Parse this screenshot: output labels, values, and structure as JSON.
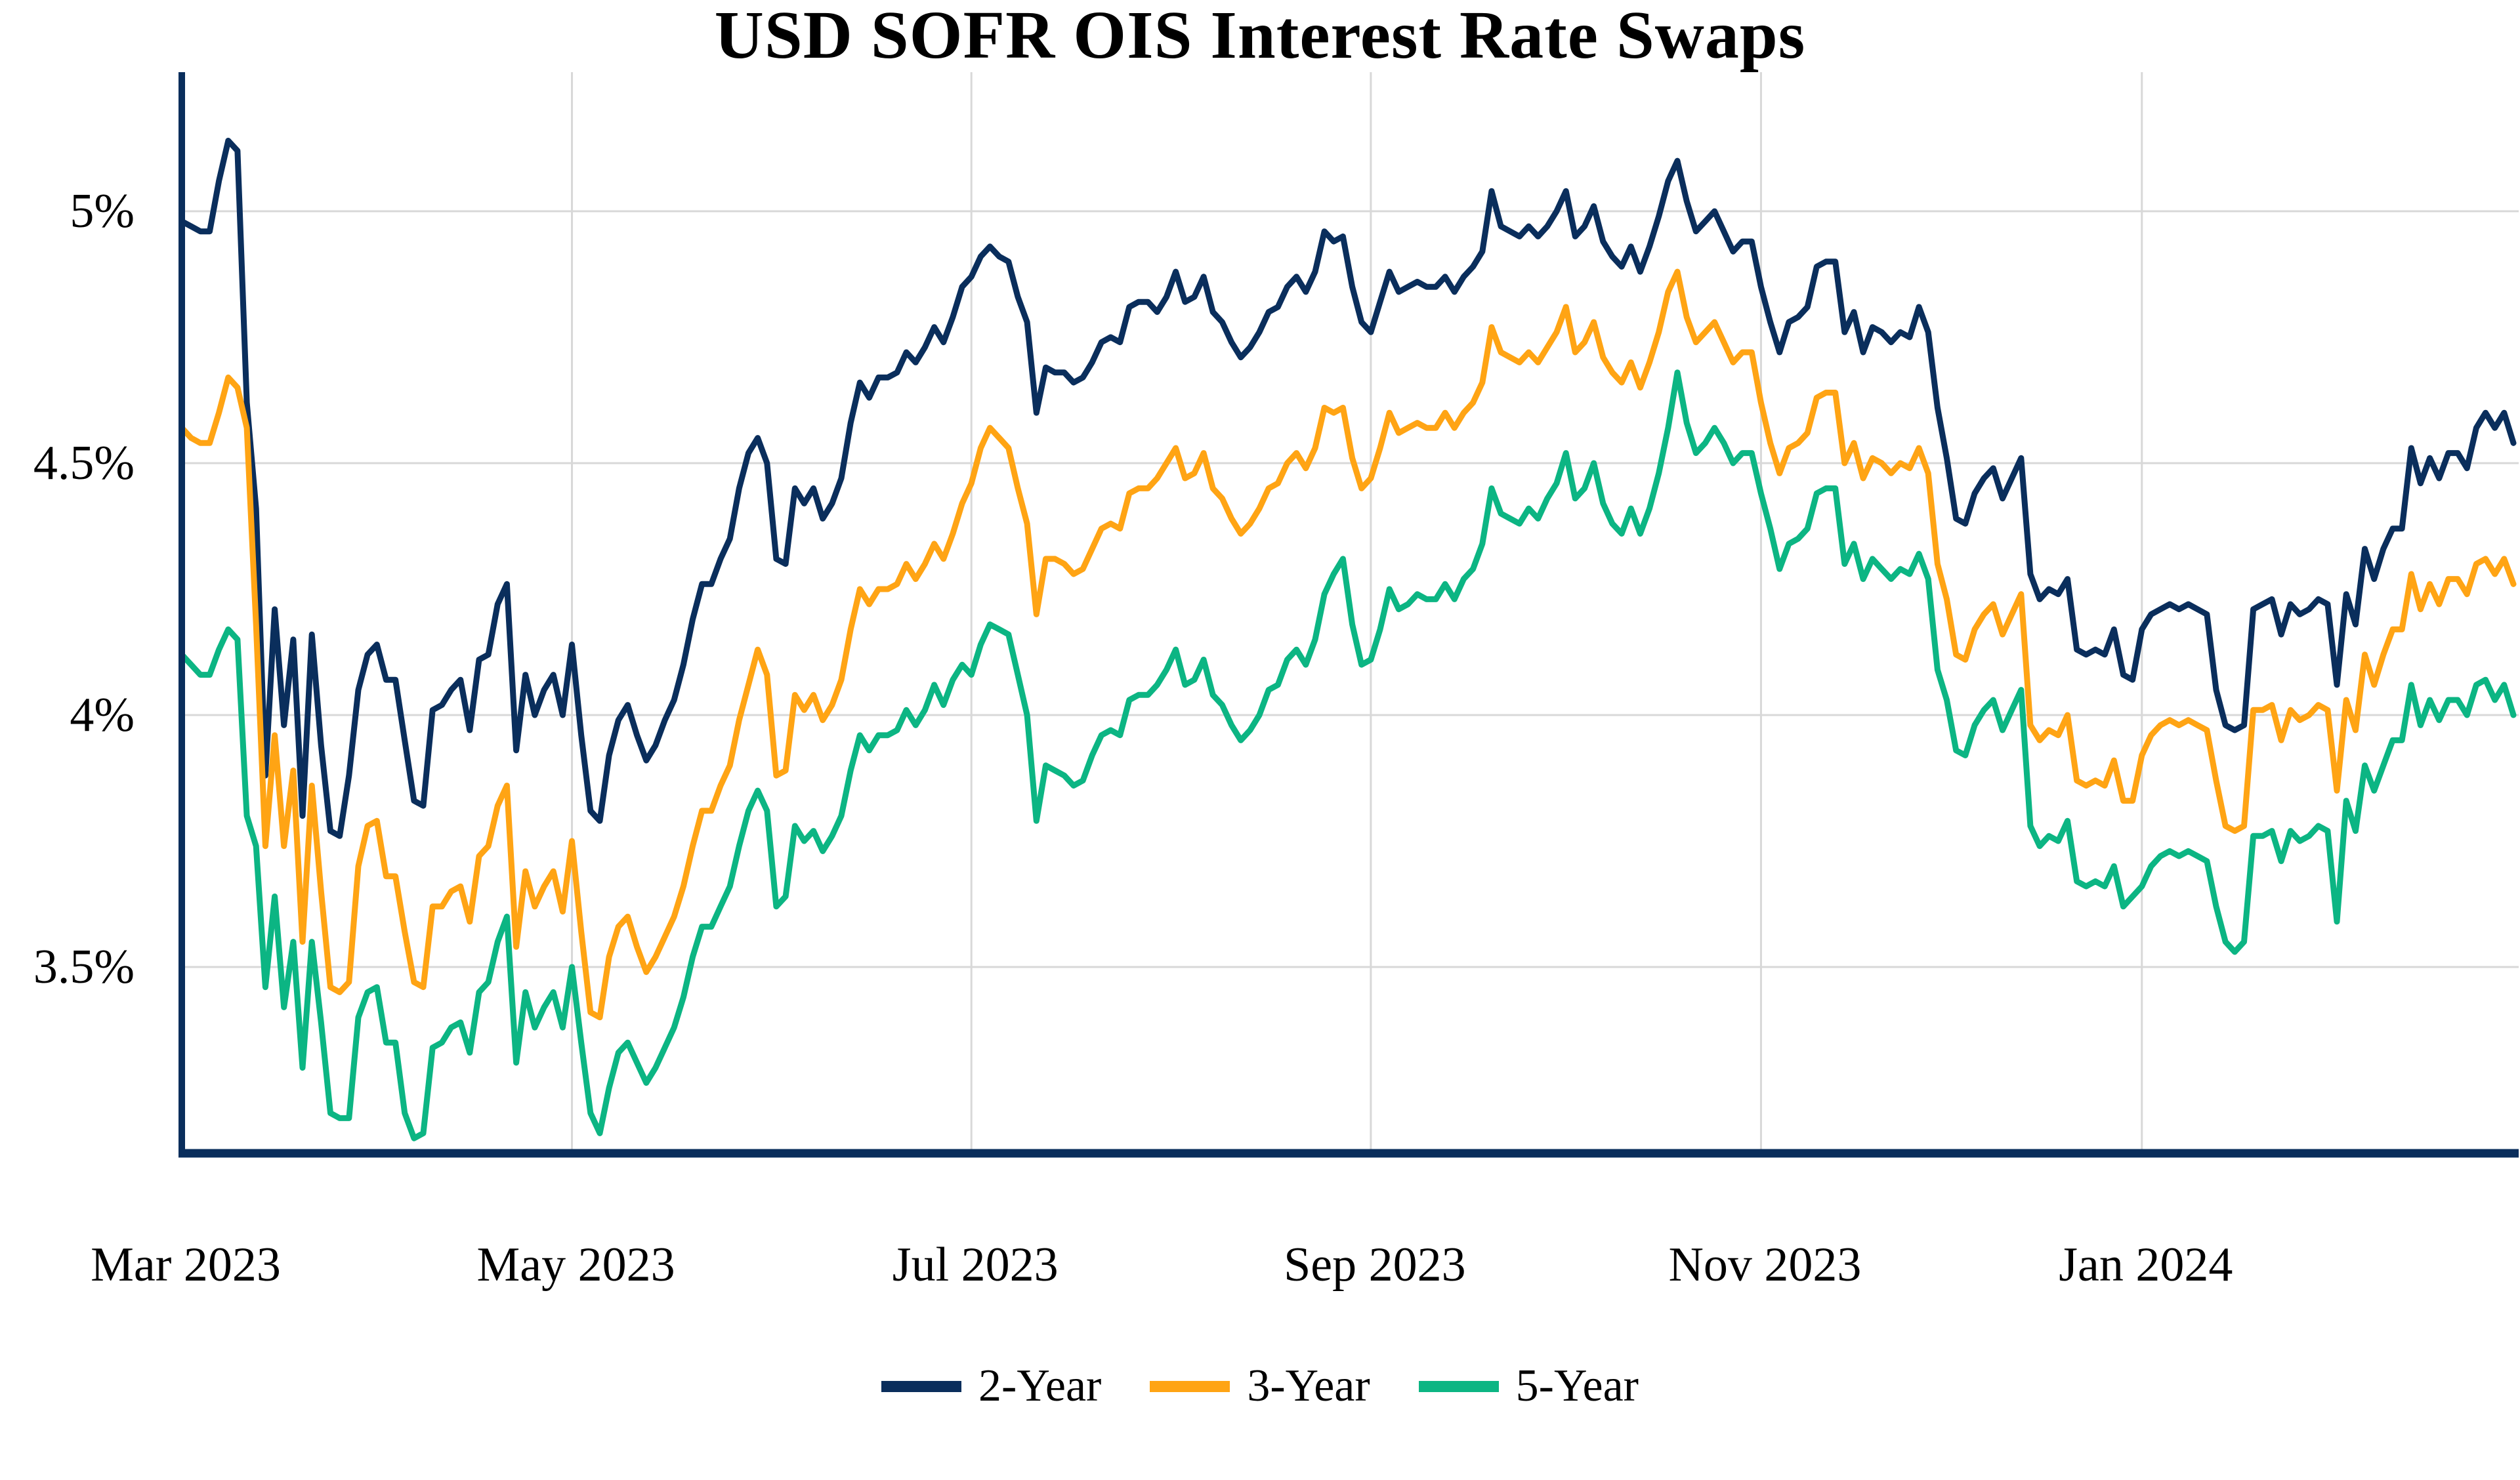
{
  "title": "USD SOFR OIS Interest Rate Swaps",
  "colors": {
    "background": "#ffffff",
    "grid": "#d8d8d8",
    "axis": "#0a2e5c",
    "text": "#000000",
    "series_2yr": "#0a2e5c",
    "series_3yr": "#ffa414",
    "series_5yr": "#0cb583"
  },
  "chart_data": {
    "type": "line",
    "title": "USD SOFR OIS Interest Rate Swaps",
    "xlabel": "",
    "ylabel": "",
    "x_axis": {
      "domain": [
        "Mar 2023",
        "Feb 2024"
      ],
      "frequency": "business-daily",
      "ticks": [
        {
          "label": "Mar 2023",
          "index": 0
        },
        {
          "label": "May 2023",
          "index": 42
        },
        {
          "label": "Jul 2023",
          "index": 85
        },
        {
          "label": "Sep 2023",
          "index": 128
        },
        {
          "label": "Nov 2023",
          "index": 170
        },
        {
          "label": "Jan 2024",
          "index": 211
        }
      ]
    },
    "y_axis": {
      "tick_labels": [
        "5%",
        "4.5%",
        "4%",
        "3.5%"
      ],
      "tick_values": [
        5,
        4.5,
        4,
        3.5
      ],
      "ylim": [
        3.13,
        5.28
      ],
      "unit": "percent",
      "grid": true
    },
    "legend": {
      "position": "bottom",
      "entries": [
        "2-Year",
        "3-Year",
        "5-Year"
      ]
    },
    "series": [
      {
        "name": "2-Year",
        "color": "#0a2e5c",
        "values": [
          4.98,
          4.97,
          4.96,
          4.96,
          5.06,
          5.14,
          5.12,
          4.62,
          4.41,
          3.88,
          4.21,
          3.98,
          4.15,
          3.8,
          4.16,
          3.94,
          3.77,
          3.76,
          3.88,
          4.05,
          4.12,
          4.14,
          4.07,
          4.07,
          3.95,
          3.83,
          3.82,
          4.01,
          4.02,
          4.05,
          4.07,
          3.97,
          4.11,
          4.12,
          4.22,
          4.26,
          3.93,
          4.08,
          4.0,
          4.05,
          4.08,
          4.0,
          4.14,
          3.96,
          3.81,
          3.79,
          3.92,
          3.99,
          4.02,
          3.96,
          3.91,
          3.94,
          3.99,
          4.03,
          4.1,
          4.19,
          4.26,
          4.26,
          4.31,
          4.35,
          4.45,
          4.52,
          4.55,
          4.5,
          4.31,
          4.3,
          4.45,
          4.42,
          4.45,
          4.39,
          4.42,
          4.47,
          4.58,
          4.66,
          4.63,
          4.67,
          4.67,
          4.68,
          4.72,
          4.7,
          4.73,
          4.77,
          4.74,
          4.79,
          4.85,
          4.87,
          4.91,
          4.93,
          4.91,
          4.9,
          4.83,
          4.78,
          4.6,
          4.69,
          4.68,
          4.68,
          4.66,
          4.67,
          4.7,
          4.74,
          4.75,
          4.74,
          4.81,
          4.82,
          4.82,
          4.8,
          4.83,
          4.88,
          4.82,
          4.83,
          4.87,
          4.8,
          4.78,
          4.74,
          4.71,
          4.73,
          4.76,
          4.8,
          4.81,
          4.85,
          4.87,
          4.84,
          4.88,
          4.96,
          4.94,
          4.95,
          4.85,
          4.78,
          4.76,
          4.82,
          4.88,
          4.84,
          4.85,
          4.86,
          4.85,
          4.85,
          4.87,
          4.84,
          4.87,
          4.89,
          4.92,
          5.04,
          4.97,
          4.96,
          4.95,
          4.97,
          4.95,
          4.97,
          5.0,
          5.04,
          4.95,
          4.97,
          5.01,
          4.94,
          4.91,
          4.89,
          4.93,
          4.88,
          4.93,
          4.99,
          5.06,
          5.1,
          5.02,
          4.96,
          4.98,
          5.0,
          4.96,
          4.92,
          4.94,
          4.94,
          4.85,
          4.78,
          4.72,
          4.78,
          4.79,
          4.81,
          4.89,
          4.9,
          4.9,
          4.76,
          4.8,
          4.72,
          4.77,
          4.76,
          4.74,
          4.76,
          4.75,
          4.81,
          4.76,
          4.61,
          4.51,
          4.39,
          4.38,
          4.44,
          4.47,
          4.49,
          4.43,
          4.47,
          4.51,
          4.28,
          4.23,
          4.25,
          4.24,
          4.27,
          4.13,
          4.12,
          4.13,
          4.12,
          4.17,
          4.08,
          4.07,
          4.17,
          4.2,
          4.21,
          4.22,
          4.21,
          4.22,
          4.21,
          4.2,
          4.05,
          3.98,
          3.97,
          3.98,
          4.21,
          4.22,
          4.23,
          4.16,
          4.22,
          4.2,
          4.21,
          4.23,
          4.22,
          4.06,
          4.24,
          4.18,
          4.33,
          4.27,
          4.33,
          4.37,
          4.37,
          4.53,
          4.46,
          4.51,
          4.47,
          4.52,
          4.52,
          4.49,
          4.57,
          4.6,
          4.57,
          4.6,
          4.54
        ]
      },
      {
        "name": "3-Year",
        "color": "#ffa414",
        "values": [
          4.57,
          4.55,
          4.54,
          4.54,
          4.6,
          4.67,
          4.65,
          4.57,
          4.18,
          3.74,
          3.96,
          3.74,
          3.89,
          3.55,
          3.86,
          3.65,
          3.46,
          3.45,
          3.47,
          3.7,
          3.78,
          3.79,
          3.68,
          3.68,
          3.57,
          3.47,
          3.46,
          3.62,
          3.62,
          3.65,
          3.66,
          3.59,
          3.72,
          3.74,
          3.82,
          3.86,
          3.54,
          3.69,
          3.62,
          3.66,
          3.69,
          3.61,
          3.75,
          3.57,
          3.41,
          3.4,
          3.52,
          3.58,
          3.6,
          3.54,
          3.49,
          3.52,
          3.56,
          3.6,
          3.66,
          3.74,
          3.81,
          3.81,
          3.86,
          3.9,
          3.99,
          4.06,
          4.13,
          4.08,
          3.88,
          3.89,
          4.04,
          4.01,
          4.04,
          3.99,
          4.02,
          4.07,
          4.17,
          4.25,
          4.22,
          4.25,
          4.25,
          4.26,
          4.3,
          4.27,
          4.3,
          4.34,
          4.31,
          4.36,
          4.42,
          4.46,
          4.53,
          4.57,
          4.55,
          4.53,
          4.45,
          4.38,
          4.2,
          4.31,
          4.31,
          4.3,
          4.28,
          4.29,
          4.33,
          4.37,
          4.38,
          4.37,
          4.44,
          4.45,
          4.45,
          4.47,
          4.5,
          4.53,
          4.47,
          4.48,
          4.52,
          4.45,
          4.43,
          4.39,
          4.36,
          4.38,
          4.41,
          4.45,
          4.46,
          4.5,
          4.52,
          4.49,
          4.53,
          4.61,
          4.6,
          4.61,
          4.51,
          4.45,
          4.47,
          4.53,
          4.6,
          4.56,
          4.57,
          4.58,
          4.57,
          4.57,
          4.6,
          4.57,
          4.6,
          4.62,
          4.66,
          4.77,
          4.72,
          4.71,
          4.7,
          4.72,
          4.7,
          4.73,
          4.76,
          4.81,
          4.72,
          4.74,
          4.78,
          4.71,
          4.68,
          4.66,
          4.7,
          4.65,
          4.7,
          4.76,
          4.84,
          4.88,
          4.79,
          4.74,
          4.76,
          4.78,
          4.74,
          4.7,
          4.72,
          4.72,
          4.62,
          4.54,
          4.48,
          4.53,
          4.54,
          4.56,
          4.63,
          4.64,
          4.64,
          4.5,
          4.54,
          4.47,
          4.51,
          4.5,
          4.48,
          4.5,
          4.49,
          4.53,
          4.48,
          4.3,
          4.23,
          4.12,
          4.11,
          4.17,
          4.2,
          4.22,
          4.16,
          4.2,
          4.24,
          3.98,
          3.95,
          3.97,
          3.96,
          4.0,
          3.87,
          3.86,
          3.87,
          3.86,
          3.91,
          3.83,
          3.83,
          3.92,
          3.96,
          3.98,
          3.99,
          3.98,
          3.99,
          3.98,
          3.97,
          3.87,
          3.78,
          3.77,
          3.78,
          4.01,
          4.01,
          4.02,
          3.95,
          4.01,
          3.99,
          4.0,
          4.02,
          4.01,
          3.85,
          4.03,
          3.97,
          4.12,
          4.06,
          4.12,
          4.17,
          4.17,
          4.28,
          4.21,
          4.26,
          4.22,
          4.27,
          4.27,
          4.24,
          4.3,
          4.31,
          4.28,
          4.31,
          4.26
        ]
      },
      {
        "name": "5-Year",
        "color": "#0cb583",
        "values": [
          4.12,
          4.1,
          4.08,
          4.08,
          4.13,
          4.17,
          4.15,
          3.8,
          3.74,
          3.46,
          3.64,
          3.42,
          3.55,
          3.3,
          3.55,
          3.39,
          3.21,
          3.2,
          3.2,
          3.4,
          3.45,
          3.46,
          3.35,
          3.35,
          3.21,
          3.16,
          3.17,
          3.34,
          3.35,
          3.38,
          3.39,
          3.33,
          3.45,
          3.47,
          3.55,
          3.6,
          3.31,
          3.45,
          3.38,
          3.42,
          3.45,
          3.38,
          3.5,
          3.35,
          3.21,
          3.17,
          3.26,
          3.33,
          3.35,
          3.31,
          3.27,
          3.3,
          3.34,
          3.38,
          3.44,
          3.52,
          3.58,
          3.58,
          3.62,
          3.66,
          3.74,
          3.81,
          3.85,
          3.81,
          3.62,
          3.64,
          3.78,
          3.75,
          3.77,
          3.73,
          3.76,
          3.8,
          3.89,
          3.96,
          3.93,
          3.96,
          3.96,
          3.97,
          4.01,
          3.98,
          4.01,
          4.06,
          4.02,
          4.07,
          4.1,
          4.08,
          4.14,
          4.18,
          4.17,
          4.16,
          4.08,
          4.0,
          3.79,
          3.9,
          3.89,
          3.88,
          3.86,
          3.87,
          3.92,
          3.96,
          3.97,
          3.96,
          4.03,
          4.04,
          4.04,
          4.06,
          4.09,
          4.13,
          4.06,
          4.07,
          4.11,
          4.04,
          4.02,
          3.98,
          3.95,
          3.97,
          4.0,
          4.05,
          4.06,
          4.11,
          4.13,
          4.1,
          4.15,
          4.24,
          4.28,
          4.31,
          4.18,
          4.1,
          4.11,
          4.17,
          4.25,
          4.21,
          4.22,
          4.24,
          4.23,
          4.23,
          4.26,
          4.23,
          4.27,
          4.29,
          4.34,
          4.45,
          4.4,
          4.39,
          4.38,
          4.41,
          4.39,
          4.43,
          4.46,
          4.52,
          4.43,
          4.45,
          4.5,
          4.42,
          4.38,
          4.36,
          4.41,
          4.36,
          4.41,
          4.48,
          4.57,
          4.68,
          4.58,
          4.52,
          4.54,
          4.57,
          4.54,
          4.5,
          4.52,
          4.52,
          4.44,
          4.37,
          4.29,
          4.34,
          4.35,
          4.37,
          4.44,
          4.45,
          4.45,
          4.3,
          4.34,
          4.27,
          4.31,
          4.29,
          4.27,
          4.29,
          4.28,
          4.32,
          4.27,
          4.09,
          4.03,
          3.93,
          3.92,
          3.98,
          4.01,
          4.03,
          3.97,
          4.01,
          4.05,
          3.78,
          3.74,
          3.76,
          3.75,
          3.79,
          3.67,
          3.66,
          3.67,
          3.66,
          3.7,
          3.62,
          3.64,
          3.66,
          3.7,
          3.72,
          3.73,
          3.72,
          3.73,
          3.72,
          3.71,
          3.62,
          3.55,
          3.53,
          3.55,
          3.76,
          3.76,
          3.77,
          3.71,
          3.77,
          3.75,
          3.76,
          3.78,
          3.77,
          3.59,
          3.83,
          3.77,
          3.9,
          3.85,
          3.9,
          3.95,
          3.95,
          4.06,
          3.98,
          4.03,
          3.99,
          4.03,
          4.03,
          4.0,
          4.06,
          4.07,
          4.03,
          4.06,
          4.0
        ]
      }
    ]
  }
}
